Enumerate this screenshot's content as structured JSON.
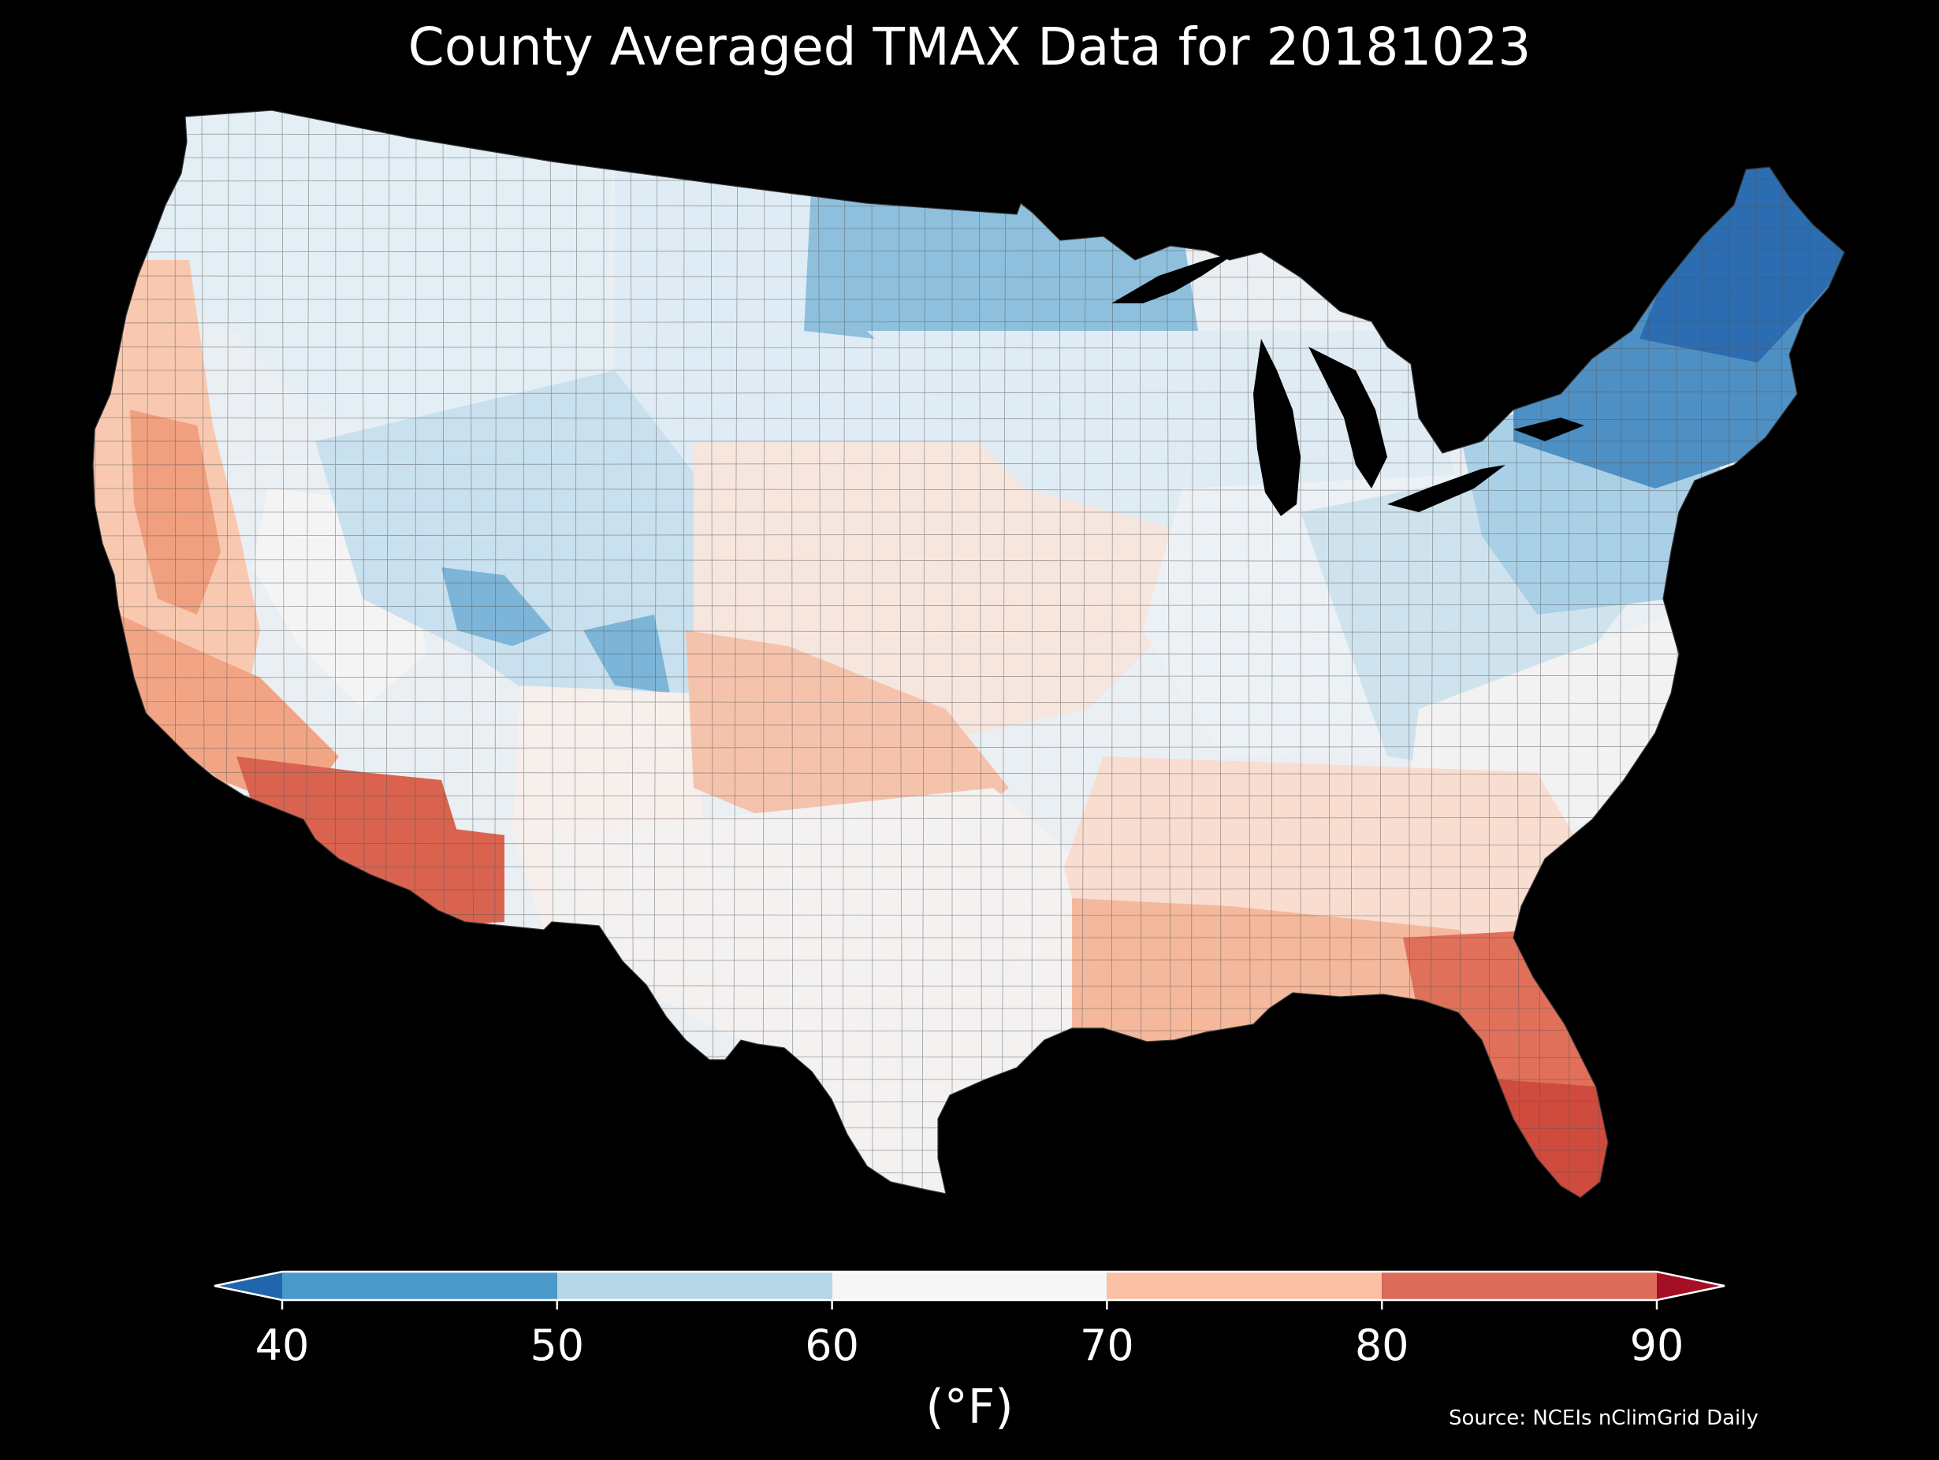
{
  "title": "County Averaged TMAX Data for 20181023",
  "colorbar": {
    "unit_label": "(°F)",
    "ticks": [
      "40",
      "50",
      "60",
      "70",
      "80",
      "90"
    ],
    "bins": [
      {
        "from": 40,
        "to": 50,
        "color": "#4b98ca"
      },
      {
        "from": 50,
        "to": 60,
        "color": "#b6d7e8"
      },
      {
        "from": 60,
        "to": 70,
        "color": "#f6f6f6"
      },
      {
        "from": 70,
        "to": 80,
        "color": "#f9c0a4"
      },
      {
        "from": 80,
        "to": 90,
        "color": "#dc6b59"
      }
    ],
    "under_color": "#2166ac",
    "over_color": "#a50f26"
  },
  "source": "Source: NCEIs nClimGrid Daily",
  "map": {
    "background": "#000000",
    "lakes_color": "#000000",
    "region_fills": {
      "northwest": "#e3eef5",
      "pacific_coast": "#f8c9b0",
      "california_valley": "#f0a07f",
      "southern_california": "#f2a585",
      "desert_southwest": "#d9634f",
      "great_basin": "#f4f4f5",
      "rockies": "#c9e0ee",
      "colorado_high": "#7db5d8",
      "new_mexico": "#f7efec",
      "southern_plains": "#f5c3ac",
      "central_plains": "#f7e6de",
      "northern_plains": "#dfecf5",
      "upper_midwest": "#8ec0de",
      "great_lakes_states": "#dfecf4",
      "ohio_valley": "#ebf1f5",
      "appalachia": "#cfe3ef",
      "mid_atlantic": "#a9d0e6",
      "northeast": "#4f90c4",
      "maine": "#2c6cb0",
      "texas": "#f4f1f1",
      "gulf_coast": "#f4b89c",
      "florida": "#e0705a",
      "south_florida": "#cf4b3e",
      "southeast": "#f8ddd0",
      "carolinas": "#f2f2f3"
    }
  }
}
